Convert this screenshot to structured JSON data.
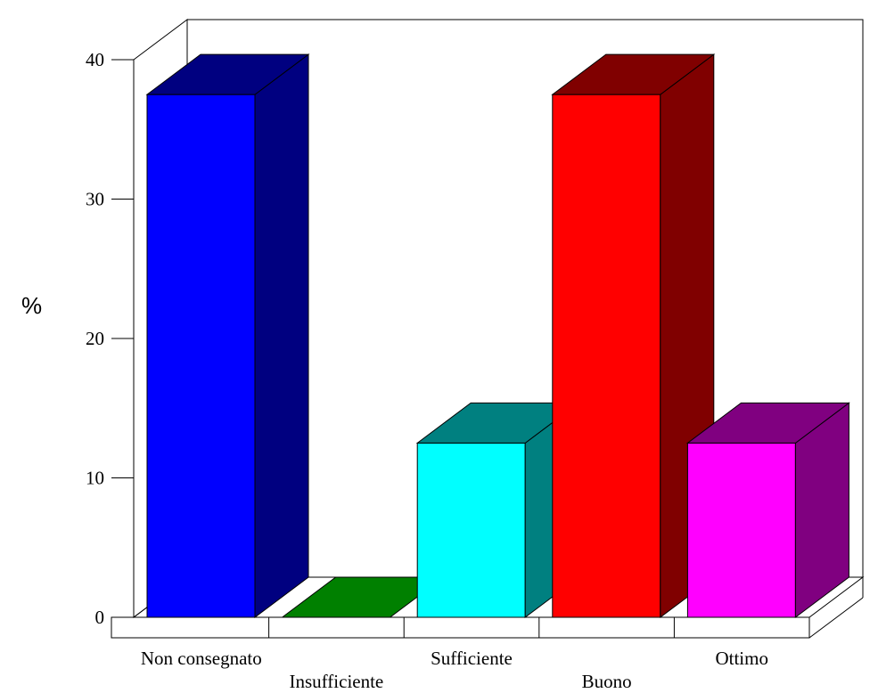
{
  "chart_data": {
    "type": "bar",
    "categories": [
      "Non consegnato",
      "Insufficiente",
      "Sufficiente",
      "Buono",
      "Ottimo"
    ],
    "values": [
      37.5,
      0,
      12.5,
      37.5,
      12.5
    ],
    "xlabel": "",
    "ylabel": "%",
    "ylim": [
      0,
      40
    ],
    "yticks": [
      "0",
      "10",
      "20",
      "30",
      "40"
    ],
    "grid": false,
    "legend": "none",
    "colors": [
      {
        "front": "#0000ff",
        "side": "#000080",
        "top": "#000080"
      },
      {
        "front": "#008000",
        "side": "#008000",
        "top": "#008000"
      },
      {
        "front": "#00ffff",
        "side": "#008080",
        "top": "#008080"
      },
      {
        "front": "#ff0000",
        "side": "#800000",
        "top": "#800000"
      },
      {
        "front": "#ff00ff",
        "side": "#800080",
        "top": "#800080"
      }
    ]
  }
}
